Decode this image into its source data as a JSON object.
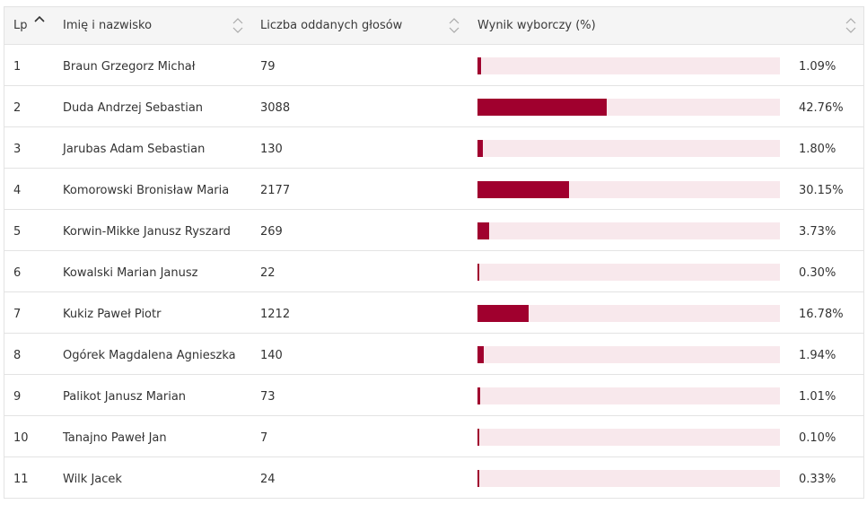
{
  "header": {
    "lp": "Lp",
    "name": "Imię i nazwisko",
    "votes": "Liczba oddanych głosów",
    "result": "Wynik wyborczy (%)"
  },
  "colors": {
    "bar_fill": "#a0002e",
    "bar_track": "#f8e8ec"
  },
  "rows": [
    {
      "lp": "1",
      "name": "Braun Grzegorz Michał",
      "votes": "79",
      "pct": "1.09%",
      "pct_value": 1.09
    },
    {
      "lp": "2",
      "name": "Duda Andrzej Sebastian",
      "votes": "3088",
      "pct": "42.76%",
      "pct_value": 42.76
    },
    {
      "lp": "3",
      "name": "Jarubas Adam Sebastian",
      "votes": "130",
      "pct": "1.80%",
      "pct_value": 1.8
    },
    {
      "lp": "4",
      "name": "Komorowski Bronisław Maria",
      "votes": "2177",
      "pct": "30.15%",
      "pct_value": 30.15
    },
    {
      "lp": "5",
      "name": "Korwin-Mikke Janusz Ryszard",
      "votes": "269",
      "pct": "3.73%",
      "pct_value": 3.73
    },
    {
      "lp": "6",
      "name": "Kowalski Marian Janusz",
      "votes": "22",
      "pct": "0.30%",
      "pct_value": 0.3
    },
    {
      "lp": "7",
      "name": "Kukiz Paweł Piotr",
      "votes": "1212",
      "pct": "16.78%",
      "pct_value": 16.78
    },
    {
      "lp": "8",
      "name": "Ogórek Magdalena Agnieszka",
      "votes": "140",
      "pct": "1.94%",
      "pct_value": 1.94
    },
    {
      "lp": "9",
      "name": "Palikot Janusz Marian",
      "votes": "73",
      "pct": "1.01%",
      "pct_value": 1.01
    },
    {
      "lp": "10",
      "name": "Tanajno Paweł Jan",
      "votes": "7",
      "pct": "0.10%",
      "pct_value": 0.1
    },
    {
      "lp": "11",
      "name": "Wilk Jacek",
      "votes": "24",
      "pct": "0.33%",
      "pct_value": 0.33
    }
  ]
}
